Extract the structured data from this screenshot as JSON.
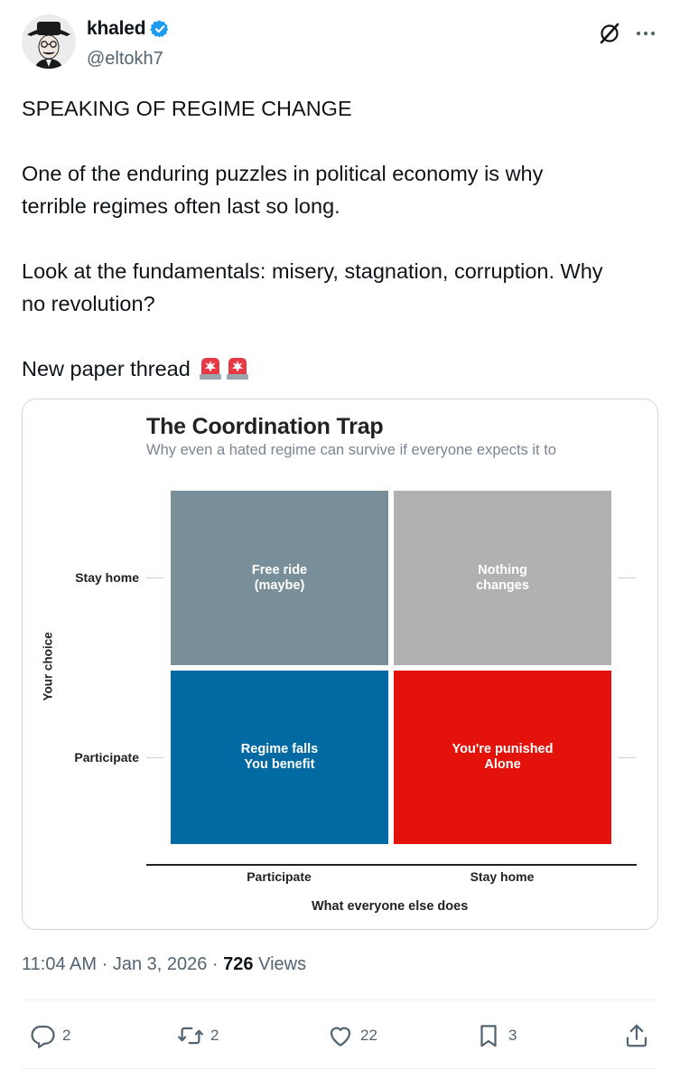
{
  "author": {
    "display_name": "khaled",
    "handle": "@eltokh7",
    "verified": true,
    "verified_color": "#1d9bf0"
  },
  "header_icons": [
    "grok-icon",
    "more-icon"
  ],
  "tweet": {
    "lines": [
      "SPEAKING OF REGIME CHANGE",
      "One of the enduring puzzles in political economy is why",
      "terrible regimes often last so long.",
      "Look at the fundamentals: misery, stagnation, corruption. Why",
      "no revolution?",
      "New paper thread"
    ],
    "emoji": [
      "police-car-light-icon",
      "police-car-light-icon"
    ]
  },
  "chart_data": {
    "type": "table",
    "title": "The Coordination Trap",
    "subtitle": "Why even a hated regime can survive if everyone expects it to",
    "xlabel": "What everyone else does",
    "ylabel": "Your choice",
    "x_categories": [
      "Participate",
      "Stay home"
    ],
    "y_categories": [
      "Stay home",
      "Participate"
    ],
    "cells": [
      {
        "row": "Stay home",
        "col": "Participate",
        "text": "Free ride\n(maybe)",
        "color": "#788f9a"
      },
      {
        "row": "Stay home",
        "col": "Stay home",
        "text": "Nothing\nchanges",
        "color": "#b1b1b1"
      },
      {
        "row": "Participate",
        "col": "Participate",
        "text": "Regime falls\nYou benefit",
        "color": "#016aa3"
      },
      {
        "row": "Participate",
        "col": "Stay home",
        "text": "You're punished\nAlone",
        "color": "#e3120b"
      }
    ]
  },
  "meta": {
    "time": "11:04 AM",
    "date": "Jan 3, 2026",
    "separator": "·",
    "views_count": "726",
    "views_label": "Views"
  },
  "actions": {
    "replies": "2",
    "reposts": "2",
    "likes": "22",
    "bookmarks": "3"
  },
  "colors": {
    "text_primary": "#0f1419",
    "text_secondary": "#536471",
    "border": "#cfd9de"
  }
}
